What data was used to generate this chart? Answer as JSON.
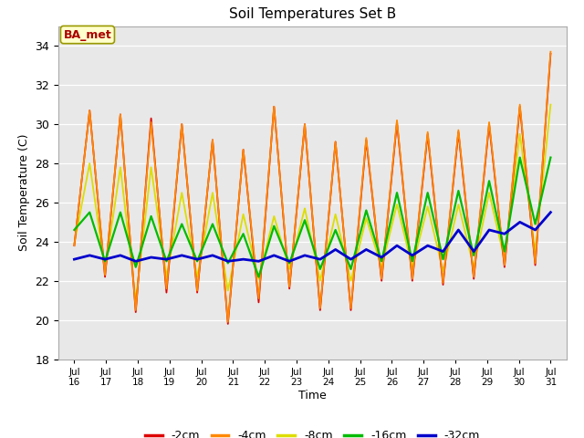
{
  "title": "Soil Temperatures Set B",
  "xlabel": "Time",
  "ylabel": "Soil Temperature (C)",
  "ylim": [
    18,
    35
  ],
  "yticks": [
    18,
    20,
    22,
    24,
    26,
    28,
    30,
    32,
    34
  ],
  "annotation": "BA_met",
  "legend_labels": [
    "-2cm",
    "-4cm",
    "-8cm",
    "-16cm",
    "-32cm"
  ],
  "legend_colors": [
    "#dd0000",
    "#ff8800",
    "#dddd00",
    "#00bb00",
    "#0000cc"
  ],
  "bg_color": "#e8e8e8",
  "x_tick_labels": [
    "Jul\n16",
    "Jul\n17",
    "Jul\n18",
    "Jul\n19",
    "Jul\n20",
    "Jul\n21",
    "Jul\n22",
    "Jul\n23",
    "Jul\n24",
    "Jul\n25",
    "Jul\n26",
    "Jul\n27",
    "Jul\n28",
    "Jul\n29",
    "Jul\n30",
    "Jul\n31"
  ],
  "series_2cm": [
    23.8,
    30.7,
    22.2,
    30.5,
    20.4,
    30.3,
    21.4,
    30.0,
    21.4,
    29.2,
    19.8,
    28.7,
    20.9,
    30.9,
    21.6,
    30.0,
    20.5,
    29.1,
    20.5,
    29.2,
    22.0,
    30.1,
    22.0,
    29.5,
    21.8,
    29.6,
    22.1,
    30.0,
    22.7,
    30.9,
    22.8,
    33.6
  ],
  "series_4cm": [
    23.8,
    30.7,
    22.3,
    30.5,
    20.5,
    30.1,
    21.6,
    30.0,
    21.5,
    29.2,
    19.9,
    28.7,
    21.1,
    30.9,
    21.7,
    30.0,
    20.6,
    29.1,
    20.6,
    29.3,
    22.1,
    30.2,
    22.1,
    29.6,
    21.9,
    29.7,
    22.2,
    30.1,
    22.8,
    31.0,
    22.9,
    33.7
  ],
  "series_8cm": [
    23.9,
    28.0,
    22.5,
    27.8,
    21.0,
    27.8,
    22.2,
    26.5,
    22.2,
    26.5,
    21.5,
    25.4,
    22.1,
    25.3,
    22.6,
    25.7,
    22.0,
    25.4,
    22.0,
    25.2,
    22.7,
    25.9,
    22.7,
    25.8,
    22.5,
    25.9,
    22.7,
    26.5,
    23.1,
    29.5,
    23.5,
    31.0
  ],
  "series_16cm": [
    24.6,
    25.5,
    23.0,
    25.5,
    22.7,
    25.3,
    23.0,
    24.9,
    23.0,
    24.9,
    22.9,
    24.4,
    22.2,
    24.8,
    22.9,
    25.1,
    22.6,
    24.6,
    22.6,
    25.6,
    23.0,
    26.5,
    23.0,
    26.5,
    23.1,
    26.6,
    23.3,
    27.1,
    23.5,
    28.3,
    24.9,
    28.3
  ],
  "series_32cm": [
    23.1,
    23.3,
    23.1,
    23.3,
    23.0,
    23.2,
    23.1,
    23.3,
    23.1,
    23.3,
    23.0,
    23.1,
    23.0,
    23.3,
    23.0,
    23.3,
    23.1,
    23.6,
    23.1,
    23.6,
    23.2,
    23.8,
    23.3,
    23.8,
    23.5,
    24.6,
    23.5,
    24.6,
    24.4,
    25.0,
    24.6,
    25.5
  ],
  "line_widths": [
    1.3,
    1.3,
    1.3,
    1.6,
    2.0
  ]
}
